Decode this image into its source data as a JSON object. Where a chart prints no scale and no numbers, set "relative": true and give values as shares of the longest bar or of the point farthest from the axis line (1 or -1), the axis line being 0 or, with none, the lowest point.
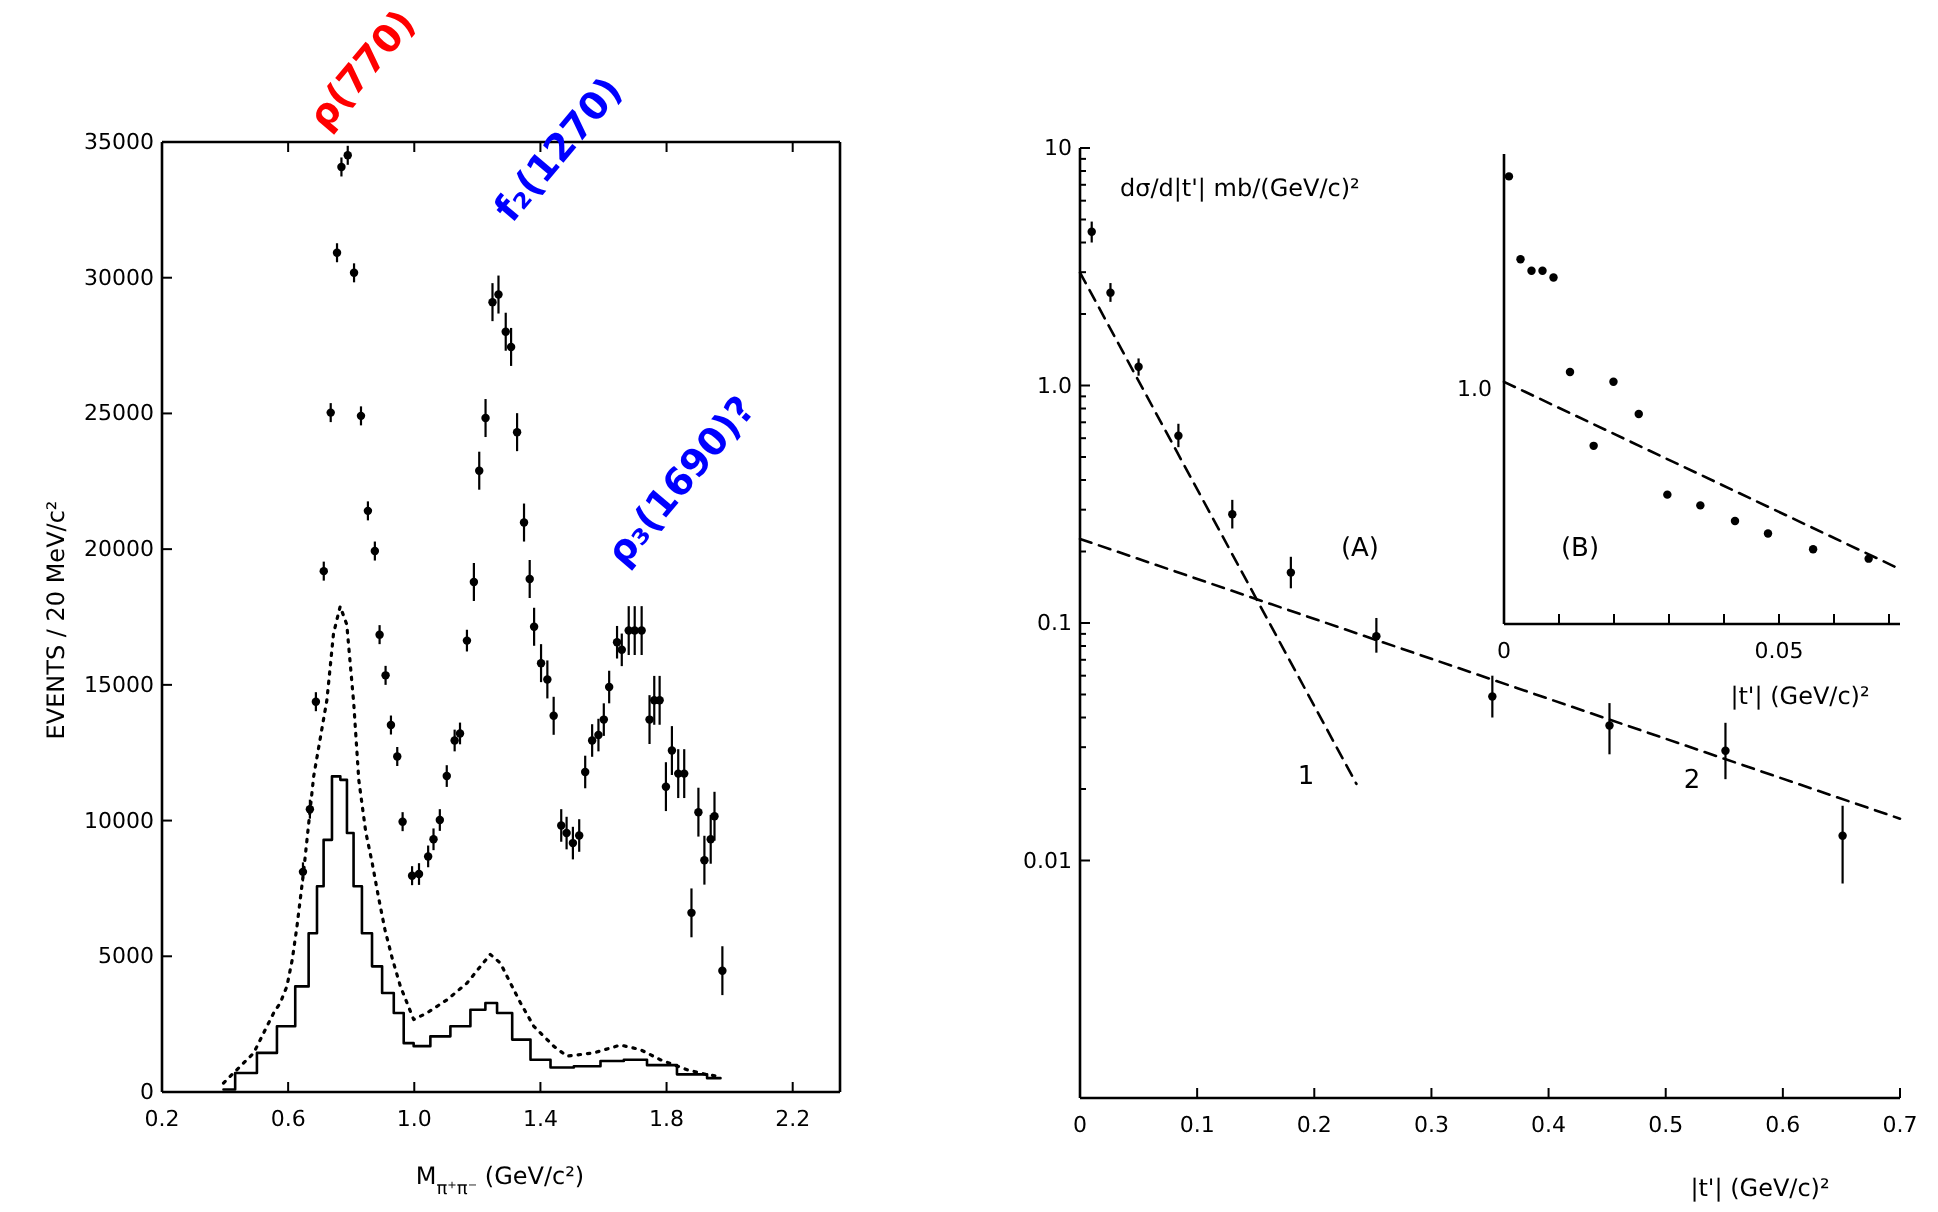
{
  "chart_data": [
    {
      "type": "scatter",
      "xlabel": "M$_{π⁺π⁻}$ (GeV/c²)",
      "ylabel": "EVENTS / 20 MeV/c²",
      "xlim": [
        0.2,
        2.35
      ],
      "xticks": [
        {
          "value": 0.2,
          "label": "0.2"
        },
        {
          "value": 0.6,
          "label": "0.6"
        },
        {
          "value": 1.0,
          "label": "1.0"
        },
        {
          "value": 1.4,
          "label": "1.4"
        },
        {
          "value": 1.8,
          "label": "1.8"
        },
        {
          "value": 2.2,
          "label": "2.2"
        }
      ],
      "ylim": [
        0,
        35000
      ],
      "yticks": [
        0,
        5000,
        10000,
        15000,
        20000,
        25000,
        30000,
        35000
      ],
      "annotations": [
        "ρ(770)",
        "f₂(1270)",
        "ρ₃(1690)?"
      ],
      "series": [
        {
          "type": "scatter",
          "marker": "circle",
          "color": "#000000",
          "x": [
            0.647,
            0.669,
            0.688,
            0.713,
            0.735,
            0.755,
            0.769,
            0.789,
            0.809,
            0.831,
            0.853,
            0.875,
            0.89,
            0.909,
            0.926,
            0.946,
            0.963,
            0.993,
            1.015,
            1.044,
            1.061,
            1.081,
            1.103,
            1.128,
            1.145,
            1.167,
            1.189,
            1.206,
            1.226,
            1.248,
            1.267,
            1.29,
            1.307,
            1.326,
            1.348,
            1.366,
            1.38,
            1.402,
            1.422,
            1.442,
            1.466,
            1.483,
            1.503,
            1.523,
            1.542,
            1.564,
            1.584,
            1.601,
            1.618,
            1.643,
            1.658,
            1.68,
            1.699,
            1.721,
            1.746,
            1.761,
            1.778,
            1.798,
            1.817,
            1.837,
            1.856,
            1.879,
            1.901,
            1.92,
            1.94,
            1.952,
            1.977
          ],
          "values": [
            8110,
            10420,
            14380,
            19190,
            25030,
            30920,
            34080,
            34510,
            30180,
            24910,
            21410,
            19930,
            16850,
            15350,
            13520,
            12360,
            9960,
            7970,
            8030,
            8680,
            9310,
            10020,
            11640,
            12950,
            13210,
            16630,
            18790,
            22890,
            24830,
            29100,
            29380,
            28010,
            27450,
            24310,
            20980,
            18900,
            17140,
            15800,
            15200,
            13860,
            9820,
            9540,
            9170,
            9450,
            11790,
            12950,
            13150,
            13720,
            14920,
            16570,
            16290,
            17000,
            17000,
            17000,
            13720,
            14430,
            14430,
            11250,
            12580,
            11730,
            11730,
            6600,
            10310,
            8540,
            9310,
            10160,
            4470
          ],
          "errors": [
            350,
            350,
            350,
            350,
            350,
            350,
            350,
            350,
            350,
            350,
            350,
            350,
            350,
            350,
            350,
            350,
            350,
            350,
            400,
            400,
            400,
            400,
            400,
            400,
            400,
            400,
            700,
            700,
            700,
            700,
            700,
            700,
            700,
            700,
            700,
            700,
            700,
            700,
            700,
            700,
            600,
            600,
            600,
            600,
            600,
            600,
            600,
            600,
            600,
            600,
            600,
            900,
            900,
            900,
            900,
            900,
            900,
            900,
            900,
            900,
            900,
            900,
            900,
            900,
            900,
            900,
            900
          ]
        },
        {
          "type": "line",
          "line_style": "dotted",
          "color": "#000000",
          "x": [
            0.395,
            0.427,
            0.459,
            0.491,
            0.522,
            0.554,
            0.575,
            0.596,
            0.613,
            0.628,
            0.649,
            0.681,
            0.723,
            0.744,
            0.765,
            0.786,
            0.808,
            0.824,
            0.846,
            0.867,
            0.886,
            0.907,
            0.93,
            0.956,
            0.998,
            1.04,
            1.104,
            1.167,
            1.21,
            1.241,
            1.273,
            1.305,
            1.337,
            1.379,
            1.442,
            1.484,
            1.569,
            1.654,
            1.717,
            1.78,
            1.865,
            1.928,
            1.971
          ],
          "values": [
            330,
            700,
            1070,
            1440,
            2170,
            2910,
            3280,
            3890,
            4870,
            6100,
            8110,
            11630,
            14450,
            16900,
            17890,
            17220,
            14320,
            11500,
            9590,
            8410,
            7210,
            5980,
            4930,
            3890,
            2670,
            2910,
            3400,
            4010,
            4630,
            5070,
            4750,
            4010,
            3280,
            2420,
            1690,
            1320,
            1440,
            1730,
            1560,
            1190,
            820,
            640,
            570
          ]
        },
        {
          "type": "step",
          "color": "#000000",
          "x": [
            0.395,
            0.469,
            0.533,
            0.596,
            0.649,
            0.681,
            0.702,
            0.723,
            0.755,
            0.776,
            0.797,
            0.818,
            0.85,
            0.882,
            0.914,
            0.956,
            0.977,
            1.019,
            1.083,
            1.146,
            1.21,
            1.241,
            1.284,
            1.337,
            1.4,
            1.464,
            1.548,
            1.633,
            1.696,
            1.78,
            1.886,
            1.971
          ],
          "values": [
            90,
            700,
            1440,
            2420,
            3890,
            5850,
            7580,
            9290,
            11630,
            11500,
            9540,
            7580,
            5850,
            4630,
            3650,
            2910,
            1800,
            1690,
            2050,
            2420,
            3030,
            3280,
            2910,
            1930,
            1190,
            900,
            950,
            1140,
            1190,
            990,
            650,
            510
          ]
        }
      ]
    },
    {
      "type": "scatter",
      "log": "y",
      "xlabel": "|t'| (GeV/c)²",
      "ylabel": "dσ/d|t'|  mb/(GeV/c)²",
      "xlim": [
        0,
        0.7
      ],
      "xticks": [
        0,
        0.1,
        0.2,
        0.3,
        0.4,
        0.5,
        0.6,
        0.7
      ],
      "ylim": [
        0.001,
        10
      ],
      "yticks": [
        {
          "value": 10,
          "label": "10"
        },
        {
          "value": 1,
          "label": "1.0"
        },
        {
          "value": 0.1,
          "label": "0.1"
        },
        {
          "value": 0.01,
          "label": "0.01"
        },
        {
          "value": 0.02,
          "label": null
        },
        {
          "value": 0.03,
          "label": null
        },
        {
          "value": 0.04,
          "label": null
        },
        {
          "value": 0.05,
          "label": null
        },
        {
          "value": 0.06,
          "label": null
        },
        {
          "value": 0.07,
          "label": null
        },
        {
          "value": 0.08,
          "label": null
        },
        {
          "value": 0.09,
          "label": null
        },
        {
          "value": 0.2,
          "label": null
        },
        {
          "value": 0.3,
          "label": null
        },
        {
          "value": 0.4,
          "label": null
        },
        {
          "value": 0.5,
          "label": null
        },
        {
          "value": 0.6,
          "label": null
        },
        {
          "value": 0.7,
          "label": null
        },
        {
          "value": 0.8,
          "label": null
        },
        {
          "value": 0.9,
          "label": null
        },
        {
          "value": 2,
          "label": null
        },
        {
          "value": 3,
          "label": null
        },
        {
          "value": 4,
          "label": null
        },
        {
          "value": 5,
          "label": null
        },
        {
          "value": 6,
          "label": null
        },
        {
          "value": 7,
          "label": null
        },
        {
          "value": 8,
          "label": null
        },
        {
          "value": 9,
          "label": null
        }
      ],
      "annotations": [
        "(A)",
        "1",
        "2"
      ],
      "series": [
        {
          "type": "scatter",
          "marker": "circle",
          "color": "#000000",
          "x": [
            0.01,
            0.026,
            0.05,
            0.084,
            0.13,
            0.18,
            0.253,
            0.352,
            0.452,
            0.551,
            0.651
          ],
          "values": [
            4.44,
            2.46,
            1.2,
            0.615,
            0.287,
            0.163,
            0.088,
            0.049,
            0.037,
            0.029,
            0.0127
          ],
          "errors": [
            [
              4.0,
              4.9
            ],
            [
              2.25,
              2.7
            ],
            [
              1.1,
              1.3
            ],
            [
              0.55,
              0.69
            ],
            [
              0.25,
              0.33
            ],
            [
              0.14,
              0.19
            ],
            [
              0.075,
              0.105
            ],
            [
              0.04,
              0.06
            ],
            [
              0.028,
              0.046
            ],
            [
              0.022,
              0.038
            ],
            [
              0.008,
              0.017
            ]
          ]
        },
        {
          "type": "line",
          "line_style": "dashed",
          "color": "#000000",
          "x": [
            0,
            0.236
          ],
          "values": [
            2.99,
            0.021
          ]
        },
        {
          "type": "line",
          "line_style": "dashed",
          "color": "#000000",
          "x": [
            0,
            0.7
          ],
          "values": [
            0.226,
            0.015
          ]
        }
      ]
    },
    {
      "type": "scatter",
      "relative": true,
      "xlabel": "|t'| (GeV/c)²",
      "xlim": [
        0,
        0.072
      ],
      "xticks": [
        {
          "value": 0,
          "label": "0"
        },
        {
          "value": 0.01,
          "label": null
        },
        {
          "value": 0.02,
          "label": null
        },
        {
          "value": 0.03,
          "label": null
        },
        {
          "value": 0.04,
          "label": null
        },
        {
          "value": 0.05,
          "label": "0.05"
        },
        {
          "value": 0.06,
          "label": null
        },
        {
          "value": 0.07,
          "label": null
        }
      ],
      "annotations": [
        "(B)",
        "1.0"
      ],
      "series": [
        {
          "type": "scatter",
          "marker": "circle",
          "color": "#000000",
          "x": [
            0.0009,
            0.003,
            0.005,
            0.007,
            0.009,
            0.012,
            0.0163,
            0.0199,
            0.0245,
            0.0297,
            0.0357,
            0.042,
            0.048,
            0.0562,
            0.0663
          ],
          "values": [
            1,
            0.815,
            0.789,
            0.789,
            0.774,
            0.563,
            0.398,
            0.541,
            0.469,
            0.289,
            0.265,
            0.23,
            0.202,
            0.167,
            0.146
          ]
        },
        {
          "type": "line",
          "line_style": "dashed",
          "color": "#000000",
          "x": [
            0,
            0.0714
          ],
          "values": [
            0.541,
            0.126
          ]
        }
      ]
    }
  ]
}
